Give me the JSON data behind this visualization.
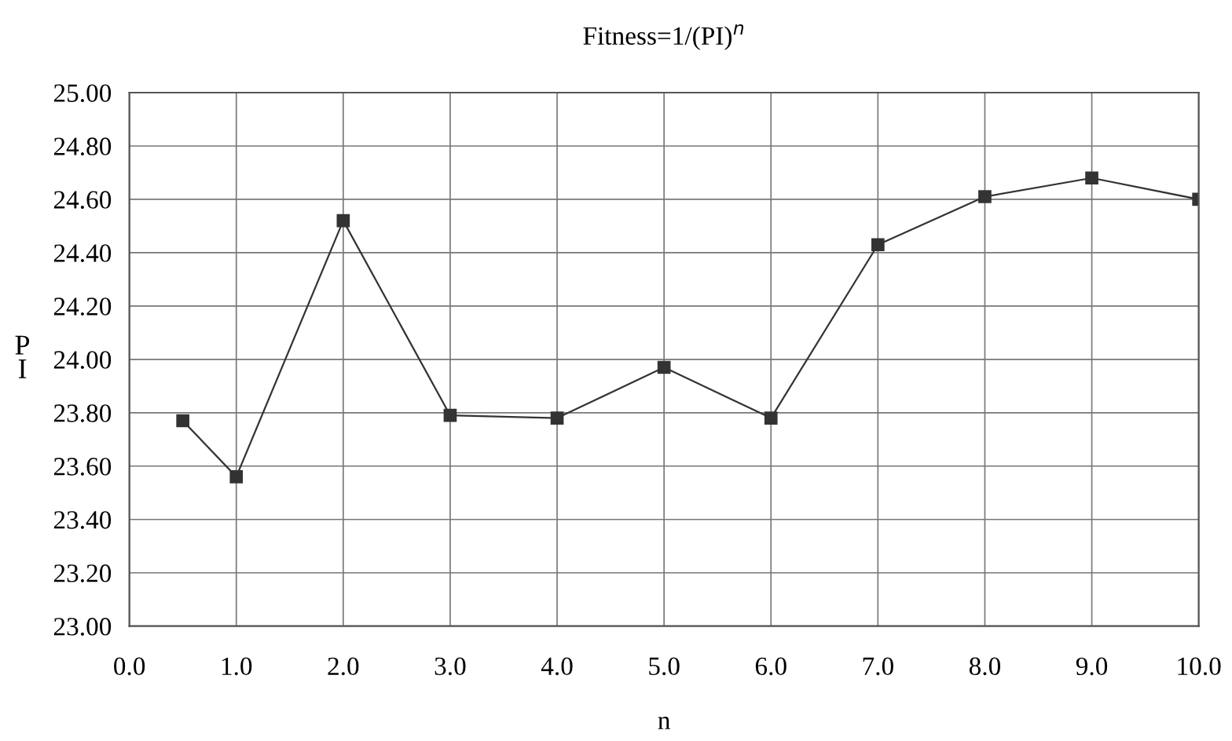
{
  "chart_data": {
    "type": "line",
    "title": "Fitness=1/(PI)$^{n}$",
    "xlabel": "n",
    "ylabel": "P\nI",
    "x": [
      0.5,
      1,
      2,
      3,
      4,
      5,
      6,
      7,
      8,
      9,
      10
    ],
    "series": [
      {
        "color": "#333333",
        "values": [
          23.77,
          23.56,
          24.52,
          23.79,
          23.78,
          23.97,
          23.78,
          24.43,
          24.61,
          24.68,
          24.6
        ]
      }
    ],
    "xlim": [
      0,
      10
    ],
    "ylim": [
      23,
      25
    ],
    "xticks": [
      {
        "value": 0,
        "label": "0.0"
      },
      {
        "value": 1,
        "label": "1.0"
      },
      {
        "value": 2,
        "label": "2.0"
      },
      {
        "value": 3,
        "label": "3.0"
      },
      {
        "value": 4,
        "label": "4.0"
      },
      {
        "value": 5,
        "label": "5.0"
      },
      {
        "value": 6,
        "label": "6.0"
      },
      {
        "value": 7,
        "label": "7.0"
      },
      {
        "value": 8,
        "label": "8.0"
      },
      {
        "value": 9,
        "label": "9.0"
      },
      {
        "value": 10,
        "label": "10.0"
      }
    ],
    "yticks": [
      {
        "value": 23,
        "label": "23.00"
      },
      {
        "value": 23.2,
        "label": "23.20"
      },
      {
        "value": 23.4,
        "label": "23.40"
      },
      {
        "value": 23.6,
        "label": "23.60"
      },
      {
        "value": 23.8,
        "label": "23.80"
      },
      {
        "value": 24,
        "label": "24.00"
      },
      {
        "value": 24.2,
        "label": "24.20"
      },
      {
        "value": 24.4,
        "label": "24.40"
      },
      {
        "value": 24.6,
        "label": "24.60"
      },
      {
        "value": 24.8,
        "label": "24.80"
      },
      {
        "value": 25,
        "label": "25.00"
      }
    ],
    "grid": true,
    "legend": false,
    "marker": "square",
    "line_style": "solid"
  }
}
